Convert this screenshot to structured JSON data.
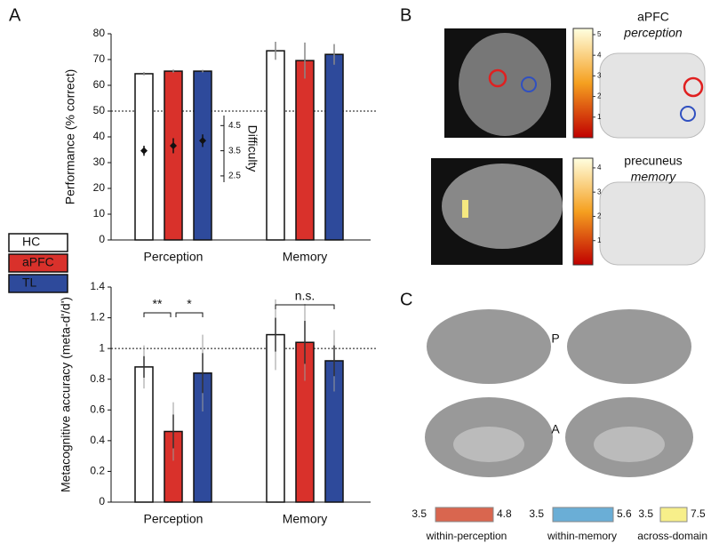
{
  "panel_labels": [
    "A",
    "B",
    "C"
  ],
  "chart_data": [
    {
      "type": "bar",
      "ylabel": "Performance (% correct)",
      "categories": [
        "Perception",
        "Memory"
      ],
      "series": [
        {
          "name": "HC",
          "color": "#ffffff",
          "values": [
            64.5,
            73.4
          ],
          "errors": [
            0.6,
            3.5
          ]
        },
        {
          "name": "aPFC",
          "color": "#d9312b",
          "values": [
            65.5,
            69.6
          ],
          "errors": [
            0.6,
            7
          ]
        },
        {
          "name": "TL",
          "color": "#2e4a9b",
          "values": [
            65.5,
            72
          ],
          "errors": [
            0.5,
            4
          ]
        }
      ],
      "ylim": [
        0,
        80
      ],
      "yticks": [
        0,
        10,
        20,
        30,
        40,
        50,
        60,
        70,
        80
      ],
      "reference_line": 50,
      "difficulty": {
        "label": "Difficulty",
        "lim": [
          2.25,
          4.9
        ],
        "ticks": [
          2.5,
          3.5,
          4.5
        ],
        "values": [
          3.5,
          3.7,
          3.9
        ],
        "errors": [
          0.2,
          0.3,
          0.25
        ]
      }
    },
    {
      "type": "bar",
      "ylabel": "Metacognitive accuracy (meta-d'/d')",
      "categories": [
        "Perception",
        "Memory"
      ],
      "series": [
        {
          "color": "#ffffff",
          "values": [
            0.88,
            1.09
          ],
          "errors": [
            0.07,
            0.11
          ],
          "errors_outer": [
            0.14,
            0.23
          ]
        },
        {
          "color": "#d9312b",
          "values": [
            0.46,
            1.04
          ],
          "errors": [
            0.11,
            0.14
          ],
          "errors_outer": [
            0.19,
            0.25
          ]
        },
        {
          "color": "#2e4a9b",
          "values": [
            0.84,
            0.92
          ],
          "errors": [
            0.13,
            0.1
          ],
          "errors_outer": [
            0.25,
            0.2
          ]
        }
      ],
      "ylim": [
        0,
        1.4
      ],
      "yticks": [
        0,
        0.2,
        0.4,
        0.6,
        0.8,
        1,
        1.2,
        1.4
      ],
      "reference_line": 1,
      "annotations": [
        "**",
        "*",
        "n.s."
      ]
    }
  ],
  "panel_b": {
    "maps": [
      {
        "region": "aPFC",
        "domain": "perception",
        "colorbar_lim": [
          0,
          5.3
        ],
        "colorbar_ticks": [
          1,
          2,
          3,
          4,
          5
        ]
      },
      {
        "region": "precuneus",
        "domain": "memory",
        "colorbar_lim": [
          0,
          4.4
        ],
        "colorbar_ticks": [
          1,
          2,
          3,
          4
        ]
      }
    ]
  },
  "panel_c": {
    "view_labels": [
      "P",
      "A"
    ],
    "legend": [
      {
        "min": 3.5,
        "max": 4.8,
        "label": "within-perception",
        "color": "#d9664f"
      },
      {
        "min": 3.5,
        "max": 5.6,
        "label": "within-memory",
        "color": "#6aaed6"
      },
      {
        "min": 3.5,
        "max": 7.5,
        "label": "across-domain",
        "color": "#f7ef8a"
      }
    ]
  }
}
